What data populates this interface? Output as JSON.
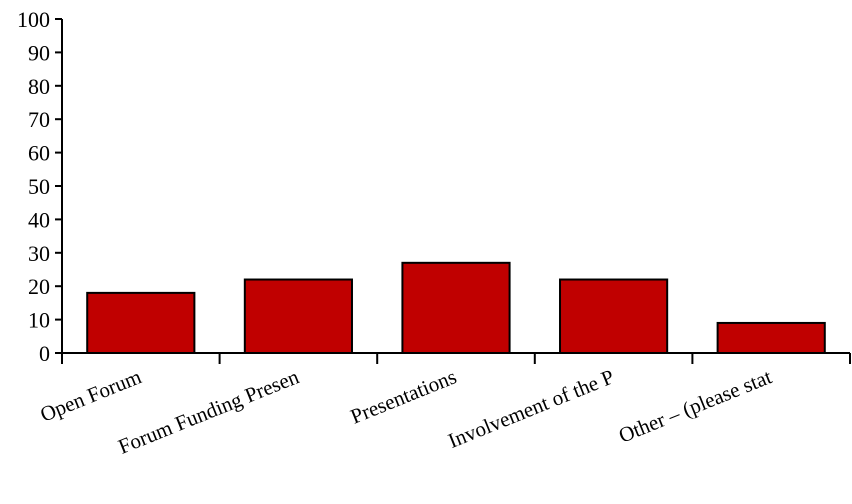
{
  "chart_data": {
    "type": "bar",
    "categories": [
      "Open Forum",
      "Forum Funding Presen",
      "Presentations",
      "Involvement of the P",
      "Other – (please stat"
    ],
    "values": [
      18,
      22,
      27,
      22,
      9
    ],
    "ylim": [
      0,
      100
    ],
    "yticks": [
      "0",
      "10",
      "20",
      "30",
      "40",
      "50",
      "60",
      "70",
      "80",
      "90",
      "100"
    ],
    "grid": false,
    "legend": "none",
    "bar_color": "#c00000",
    "bar_edge_color": "#000000"
  }
}
